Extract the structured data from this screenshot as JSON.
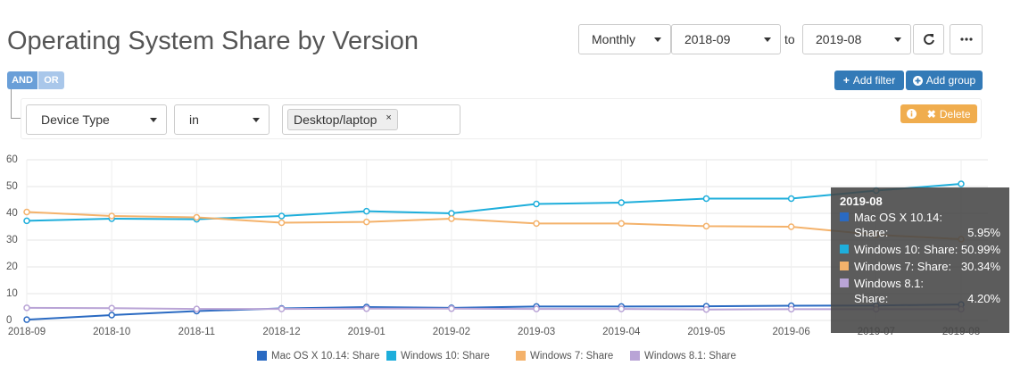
{
  "header": {
    "title": "Operating System Share by Version"
  },
  "controls": {
    "interval": "Monthly",
    "from": "2018-09",
    "to_label": "to",
    "to": "2019-08"
  },
  "filters": {
    "and": "AND",
    "or": "OR",
    "add_filter": "Add filter",
    "add_group": "Add group",
    "field": "Device Type",
    "operator": "in",
    "value": "Desktop/laptop",
    "remove": "×",
    "delete": "Delete"
  },
  "chart_data": {
    "type": "line",
    "categories": [
      "2018-09",
      "2018-10",
      "2018-11",
      "2018-12",
      "2019-01",
      "2019-02",
      "2019-03",
      "2019-04",
      "2019-05",
      "2019-06",
      "2019-07",
      "2019-08"
    ],
    "series": [
      {
        "name": "Mac OS X 10.14: Share",
        "color": "#2a6ac2",
        "values": [
          0.3,
          2,
          3.5,
          4.5,
          5,
          4.7,
          5.2,
          5.2,
          5.3,
          5.5,
          5.6,
          5.95
        ]
      },
      {
        "name": "Windows 10: Share",
        "color": "#1eaedb",
        "values": [
          37.2,
          38,
          37.8,
          39,
          40.8,
          40,
          43.5,
          44,
          45.5,
          45.5,
          48.5,
          50.99
        ]
      },
      {
        "name": "Windows 7: Share",
        "color": "#f4b26b",
        "values": [
          40.5,
          39,
          38.5,
          36.5,
          36.8,
          38,
          36.2,
          36.2,
          35.2,
          35,
          32,
          30.34
        ]
      },
      {
        "name": "Windows 8.1: Share",
        "color": "#b9a4d6",
        "values": [
          4.7,
          4.6,
          4.3,
          4.3,
          4.4,
          4.4,
          4.3,
          4.3,
          4.1,
          4.2,
          4.2,
          4.2
        ]
      }
    ],
    "ylim": [
      0,
      60
    ],
    "yticks": [
      0,
      10,
      20,
      30,
      40,
      50,
      60
    ],
    "grid": true,
    "legend": "bottom",
    "tooltip": {
      "title": "2019-08",
      "labels": [
        "Mac OS X 10.14: Share:",
        "Windows 10: Share:",
        "Windows 7: Share:",
        "Windows 8.1: Share:"
      ],
      "values": [
        5.95,
        50.99,
        30.34,
        4.2
      ],
      "value_labels": [
        "5.95%",
        "50.99%",
        "30.34%",
        "4.20%"
      ]
    }
  }
}
